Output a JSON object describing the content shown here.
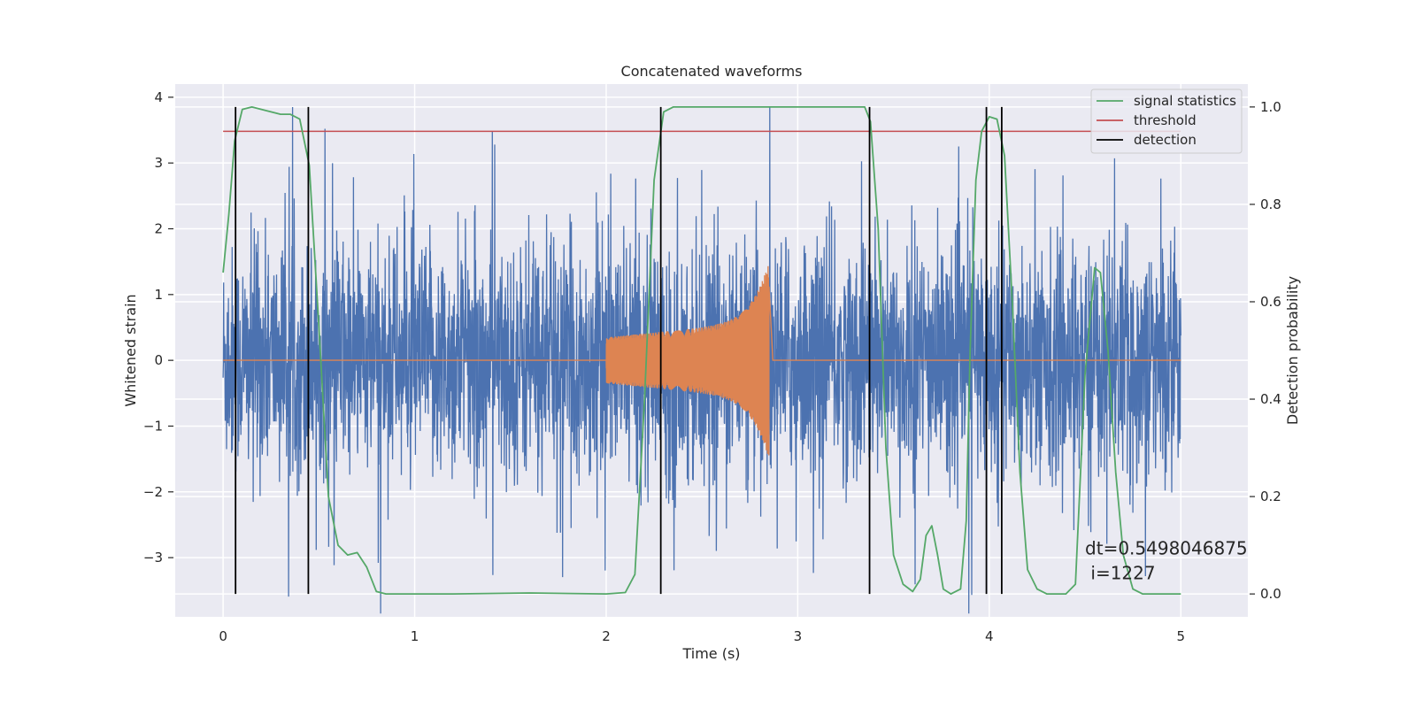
{
  "chart_data": {
    "type": "line",
    "title": "Concatenated waveforms",
    "xlabel": "Time (s)",
    "ylabel": "Whitened strain",
    "y2label": "Detection probability",
    "xlim": [
      -0.25,
      5.35
    ],
    "ylim": [
      -3.9,
      4.2
    ],
    "y2lim": [
      -0.047,
      1.047
    ],
    "xticks": [
      "0",
      "1",
      "2",
      "3",
      "4",
      "5"
    ],
    "yticks": [
      "−3",
      "−2",
      "−1",
      "0",
      "1",
      "2",
      "3",
      "4"
    ],
    "y2ticks": [
      "0.0",
      "0.2",
      "0.4",
      "0.6",
      "0.8",
      "1.0"
    ],
    "grid": true,
    "legend_position": "top-right",
    "series": [
      {
        "name": "",
        "kind": "noise",
        "color": "#4c72b0",
        "x_range": [
          0,
          5
        ],
        "amplitude": 3.85
      },
      {
        "name": "",
        "kind": "chirp",
        "color": "#dd8452",
        "x_range": [
          2.0,
          2.85
        ],
        "amplitude_start": 0.35,
        "amplitude_peak": 1.5
      },
      {
        "name": "signal statistics",
        "axis": "right",
        "color": "#55a868",
        "x": [
          0,
          0.03,
          0.06,
          0.1,
          0.15,
          0.2,
          0.25,
          0.3,
          0.35,
          0.4,
          0.45,
          0.5,
          0.55,
          0.6,
          0.65,
          0.7,
          0.75,
          0.8,
          0.85,
          0.9,
          1.2,
          1.6,
          2.0,
          2.1,
          2.15,
          2.2,
          2.25,
          2.3,
          2.35,
          2.4,
          2.6,
          3.0,
          3.35,
          3.38,
          3.42,
          3.46,
          3.5,
          3.55,
          3.6,
          3.64,
          3.67,
          3.7,
          3.73,
          3.76,
          3.8,
          3.85,
          3.88,
          3.9,
          3.93,
          3.96,
          4.0,
          4.04,
          4.08,
          4.12,
          4.16,
          4.2,
          4.25,
          4.3,
          4.4,
          4.45,
          4.5,
          4.55,
          4.58,
          4.62,
          4.66,
          4.7,
          4.75,
          4.8,
          4.9,
          5.0
        ],
        "y": [
          0.66,
          0.78,
          0.93,
          0.995,
          1.0,
          0.995,
          0.99,
          0.985,
          0.985,
          0.975,
          0.88,
          0.55,
          0.2,
          0.1,
          0.08,
          0.085,
          0.055,
          0.005,
          0.0,
          0.0,
          0.0,
          0.002,
          0.0,
          0.003,
          0.04,
          0.4,
          0.85,
          0.99,
          1.0,
          1.0,
          1.0,
          1.0,
          1.0,
          0.97,
          0.75,
          0.3,
          0.08,
          0.02,
          0.005,
          0.03,
          0.12,
          0.14,
          0.08,
          0.01,
          0.0,
          0.01,
          0.15,
          0.5,
          0.85,
          0.95,
          0.98,
          0.975,
          0.9,
          0.6,
          0.25,
          0.05,
          0.01,
          0.0,
          0.0,
          0.02,
          0.45,
          0.67,
          0.66,
          0.5,
          0.25,
          0.08,
          0.01,
          0.0,
          0.0,
          0.0
        ]
      },
      {
        "name": "threshold",
        "axis": "right",
        "color": "#c44e52",
        "x": [
          0,
          5.0
        ],
        "y": [
          0.95,
          0.95
        ]
      },
      {
        "name": "detection",
        "axis": "right",
        "color": "#000000",
        "vlines": [
          0.065,
          0.445,
          2.285,
          3.375,
          3.985,
          4.065
        ],
        "y_range": [
          0.0,
          1.0
        ]
      }
    ],
    "annotation": {
      "line1": "dt=0.5498046875",
      "line2": " i=1227",
      "x": 4.5,
      "y": -2.95
    }
  }
}
